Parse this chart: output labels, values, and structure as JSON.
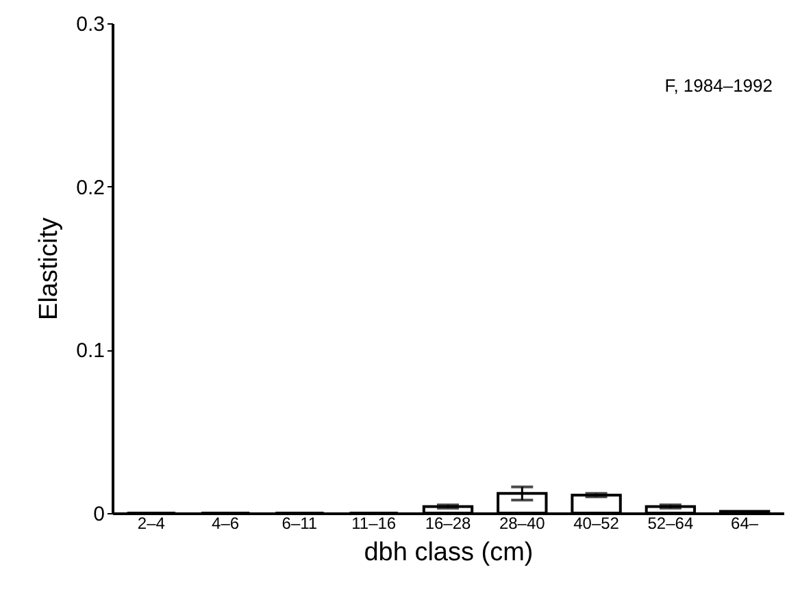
{
  "chart_data": {
    "type": "bar",
    "xlabel": "dbh class (cm)",
    "ylabel": "Elasticity",
    "annotations": [
      "F, 1984–1992"
    ],
    "categories": [
      "2–4",
      "4–6",
      "6–11",
      "11–16",
      "16–28",
      "28–40",
      "40–52",
      "52–64",
      "64–"
    ],
    "values": [
      0,
      0,
      0,
      0,
      0.004,
      0.012,
      0.011,
      0.004,
      0.001
    ],
    "errors": [
      null,
      null,
      null,
      null,
      0.001,
      0.004,
      0.001,
      0.001,
      null
    ],
    "color": "#ffffff",
    "ylim": [
      0,
      0.3
    ],
    "yticks": [
      0,
      0.1,
      0.2,
      0.3
    ],
    "grid": false
  }
}
